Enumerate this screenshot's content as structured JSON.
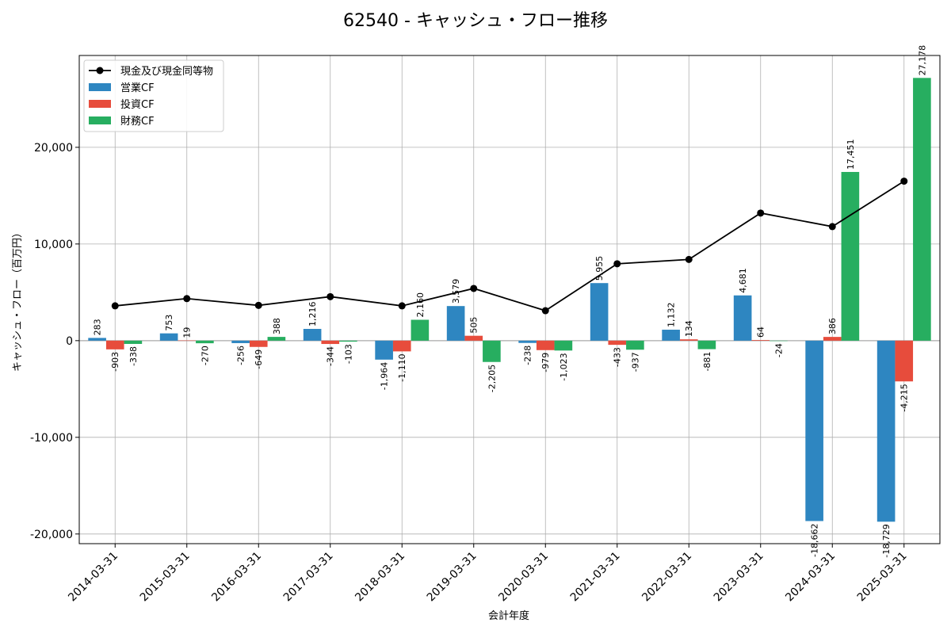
{
  "chart_data": {
    "type": "bar",
    "title": "62540 - キャッシュ・フロー推移",
    "xlabel": "会計年度",
    "ylabel": "キャッシュ・フロー（百万円）",
    "categories": [
      "2014-03-31",
      "2015-03-31",
      "2016-03-31",
      "2017-03-31",
      "2018-03-31",
      "2019-03-31",
      "2020-03-31",
      "2021-03-31",
      "2022-03-31",
      "2023-03-31",
      "2024-03-31",
      "2025-03-31"
    ],
    "ylim": [
      -21000,
      29500
    ],
    "yticks": [
      -20000,
      -10000,
      0,
      10000,
      20000
    ],
    "ytick_labels": [
      "-20,000",
      "-10,000",
      "0",
      "10,000",
      "20,000"
    ],
    "grid": true,
    "legend_position": "top-left",
    "series": [
      {
        "name": "営業CF",
        "kind": "bar",
        "color": "#2e86c1",
        "values": [
          283,
          753,
          -256,
          1216,
          -1964,
          3579,
          -238,
          5955,
          1132,
          4681,
          -18662,
          -18729
        ],
        "labels": [
          "283",
          "753",
          "-256",
          "1,216",
          "-1,964",
          "3,579",
          "-238",
          "5,955",
          "1,132",
          "4,681",
          "-18,662",
          "-18,729"
        ]
      },
      {
        "name": "投資CF",
        "kind": "bar",
        "color": "#e74c3c",
        "values": [
          -903,
          19,
          -649,
          -344,
          -1110,
          505,
          -979,
          -433,
          134,
          64,
          386,
          -4215
        ],
        "labels": [
          "-903",
          "19",
          "-649",
          "-344",
          "-1,110",
          "505",
          "-979",
          "-433",
          "134",
          "64",
          "386",
          "-4,215"
        ]
      },
      {
        "name": "財務CF",
        "kind": "bar",
        "color": "#27ae60",
        "values": [
          -338,
          -270,
          388,
          -103,
          2160,
          -2205,
          -1023,
          -937,
          -881,
          -24,
          17451,
          27178
        ],
        "labels": [
          "-338",
          "-270",
          "388",
          "-103",
          "2,160",
          "-2,205",
          "-1,023",
          "-937",
          "-881",
          "-24",
          "17,451",
          "27,178"
        ]
      },
      {
        "name": "現金及び現金同等物",
        "kind": "line",
        "color": "#000000",
        "values": [
          3600,
          4350,
          3650,
          4550,
          3600,
          5400,
          3100,
          7950,
          8400,
          13200,
          11800,
          16500
        ]
      }
    ]
  }
}
